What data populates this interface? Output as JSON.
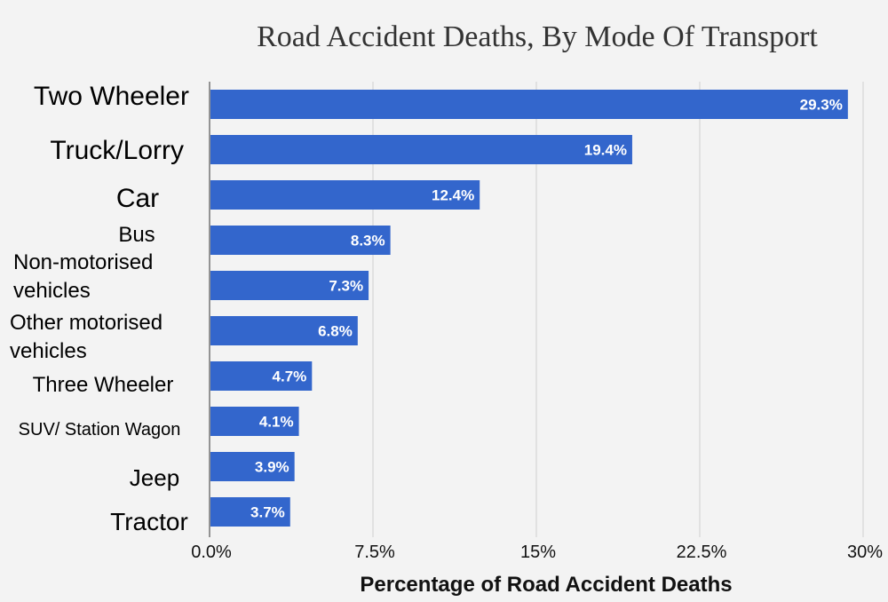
{
  "chart_data": {
    "type": "bar",
    "orientation": "horizontal",
    "title": "Road Accident Deaths, By Mode Of Transport",
    "xlabel": "Percentage  of Road Accident Deaths",
    "ylabel": "",
    "categories": [
      "Two Wheeler",
      "Truck/Lorry",
      "Car",
      "Bus",
      "Non-motorised vehicles",
      "Other motorised vehicles",
      "Three Wheeler",
      "SUV/ Station Wagon",
      "Jeep",
      "Tractor"
    ],
    "values": [
      29.3,
      19.4,
      12.4,
      8.3,
      7.3,
      6.8,
      4.7,
      4.1,
      3.9,
      3.7
    ],
    "data_labels": [
      "29.3%",
      "19.4%",
      "12.4%",
      "8.3%",
      "7.3%",
      "6.8%",
      "4.7%",
      "4.1%",
      "3.9%",
      "3.7%"
    ],
    "xlim": [
      0,
      30
    ],
    "xticks": [
      0,
      7.5,
      15,
      22.5,
      30
    ],
    "xtick_labels": [
      "0.0%",
      "7.5%",
      "15%",
      "22.5%",
      "30%"
    ],
    "grid": "vertical",
    "legend": "none",
    "bar_color": "#3366cc",
    "background_color": "#f3f3f3"
  }
}
